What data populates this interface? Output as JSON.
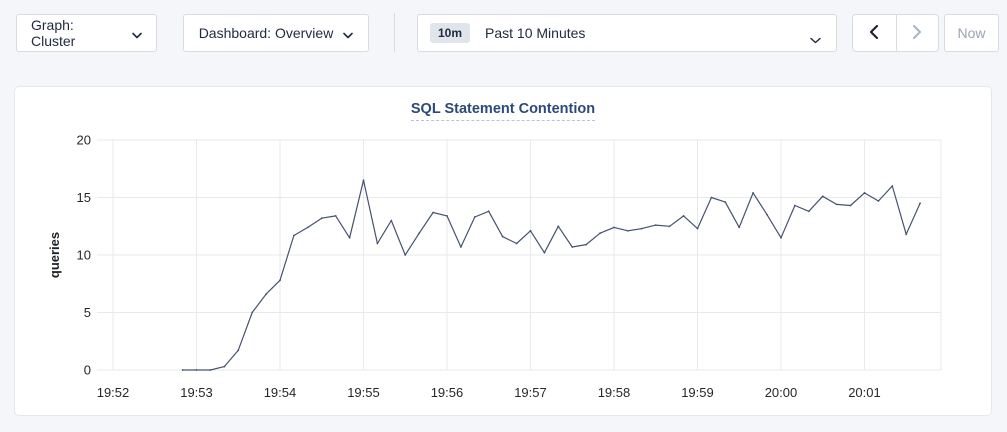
{
  "toolbar": {
    "graph_dropdown": {
      "label": "Graph: Cluster"
    },
    "dashboard_dropdown": {
      "label": "Dashboard: Overview"
    },
    "time_picker": {
      "badge": "10m",
      "label": "Past 10 Minutes"
    },
    "prev_button": {
      "enabled": true
    },
    "next_button": {
      "enabled": false
    },
    "now_button": {
      "label": "Now",
      "enabled": false
    },
    "icons": {
      "graph_caret": "chevron-down",
      "dashboard_caret": "chevron-down",
      "time_caret": "chevron-down",
      "prev": "chevron-left",
      "next": "chevron-right"
    }
  },
  "chart": {
    "title": "SQL Statement Contention",
    "ylabel": "queries"
  },
  "chart_data": {
    "type": "line",
    "title": "SQL Statement Contention",
    "xlabel": "",
    "ylabel": "queries",
    "ylim": [
      0,
      20
    ],
    "yticks": [
      0,
      5,
      10,
      15,
      20
    ],
    "xticks": [
      "19:52",
      "19:53",
      "19:54",
      "19:55",
      "19:56",
      "19:57",
      "19:58",
      "19:59",
      "20:00",
      "20:01"
    ],
    "x_domain_seconds": [
      0,
      595
    ],
    "x_tick_interval_seconds": 60,
    "grid": true,
    "legend": "none",
    "series": [
      {
        "name": "SQL Statement Contention",
        "unit": "queries",
        "start_label": "19:52:50",
        "start_offset_seconds": 50,
        "interval_seconds": 10,
        "values": [
          0,
          0,
          0,
          0.3,
          1.7,
          5,
          6.6,
          7.8,
          11.7,
          12.4,
          13.2,
          13.4,
          11.5,
          16.5,
          11,
          13,
          10,
          11.9,
          13.7,
          13.4,
          10.7,
          13.3,
          13.8,
          11.6,
          11,
          12.1,
          10.2,
          12.5,
          10.7,
          10.9,
          11.9,
          12.4,
          12.1,
          12.3,
          12.6,
          12.5,
          13.4,
          12.3,
          15,
          14.6,
          12.4,
          15.4,
          13.5,
          11.5,
          14.3,
          13.8,
          15.1,
          14.4,
          14.3,
          15.4,
          14.7,
          16,
          11.8,
          14.5
        ]
      }
    ]
  },
  "colors": {
    "page_bg": "#f4f6fa",
    "panel_bg": "#ffffff",
    "panel_border": "#e3e7ee",
    "control_border": "#d7dce4",
    "control_text": "#212b41",
    "disabled_text": "#9aa3b2",
    "badge_bg": "#e0e4eb",
    "title_text": "#2b4a7a",
    "title_underline": "#b7c3d8",
    "grid_line": "#e8e9ec",
    "axis_text": "#26272b",
    "series_line": "#46536e"
  }
}
